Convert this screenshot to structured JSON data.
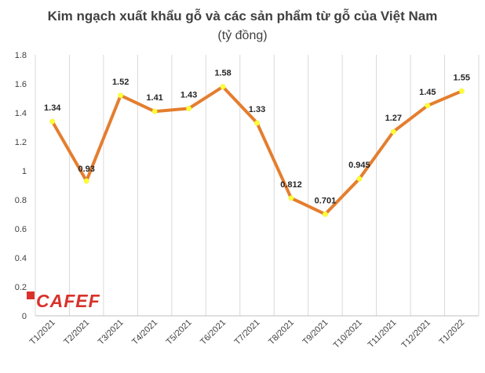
{
  "chart_data": {
    "type": "line",
    "title": "Kim ngạch xuất khẩu gỗ và các sản phẩm từ gỗ của Việt Nam",
    "subtitle": "(tỷ đồng)",
    "categories": [
      "T1/2021",
      "T2/2021",
      "T3/2021",
      "T4/2021",
      "T5/2021",
      "T6/2021",
      "T7/2021",
      "T8/2021",
      "T9/2021",
      "T10/2021",
      "T11/2021",
      "T12/2021",
      "T1/2022"
    ],
    "series": [
      {
        "values": [
          1.34,
          0.93,
          1.52,
          1.41,
          1.43,
          1.58,
          1.33,
          0.812,
          0.701,
          0.945,
          1.27,
          1.45,
          1.55
        ],
        "labels": [
          "1.34",
          "0.93",
          "1.52",
          "1.41",
          "1.43",
          "1.58",
          "1.33",
          "0.812",
          "0.701",
          "0.945",
          "1.27",
          "1.45",
          "1.55"
        ]
      }
    ],
    "yticks": [
      "0",
      "0.2",
      "0.4",
      "0.6",
      "0.8",
      "1",
      "1.2",
      "1.4",
      "1.6",
      "1.8"
    ],
    "ylim": [
      0,
      1.8
    ],
    "grid": "vertical",
    "legend": "none",
    "colors": {
      "line": "#e47e2f",
      "marker": "#ffff33",
      "grid": "#d9d9d9"
    }
  },
  "watermark": {
    "text": "CAFEF"
  }
}
